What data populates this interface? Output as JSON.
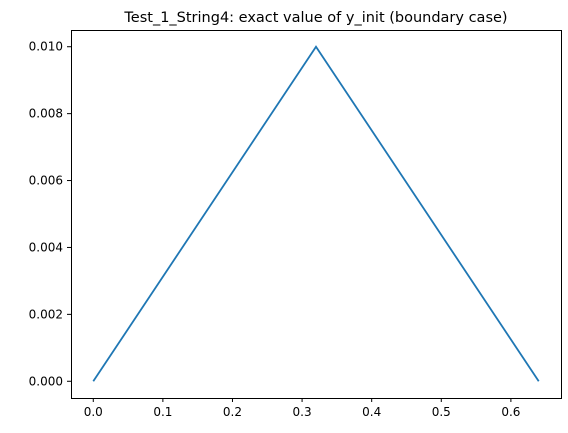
{
  "chart_data": {
    "type": "line",
    "title": "Test_1_String4: exact value of y_init (boundary case)",
    "xlabel": "",
    "ylabel": "",
    "xlim": [
      -0.032,
      0.672
    ],
    "ylim": [
      -0.0005,
      0.0105
    ],
    "x_ticks": [
      0.0,
      0.1,
      0.2,
      0.3,
      0.4,
      0.5,
      0.6
    ],
    "x_tick_labels": [
      "0.0",
      "0.1",
      "0.2",
      "0.3",
      "0.4",
      "0.5",
      "0.6"
    ],
    "y_ticks": [
      0.0,
      0.002,
      0.004,
      0.006,
      0.008,
      0.01
    ],
    "y_tick_labels": [
      "0.000",
      "0.002",
      "0.004",
      "0.006",
      "0.008",
      "0.010"
    ],
    "grid": false,
    "series": [
      {
        "color": "#1f77b4",
        "x": [
          0.0,
          0.32,
          0.64
        ],
        "y": [
          0.0,
          0.01,
          0.0
        ]
      }
    ]
  }
}
